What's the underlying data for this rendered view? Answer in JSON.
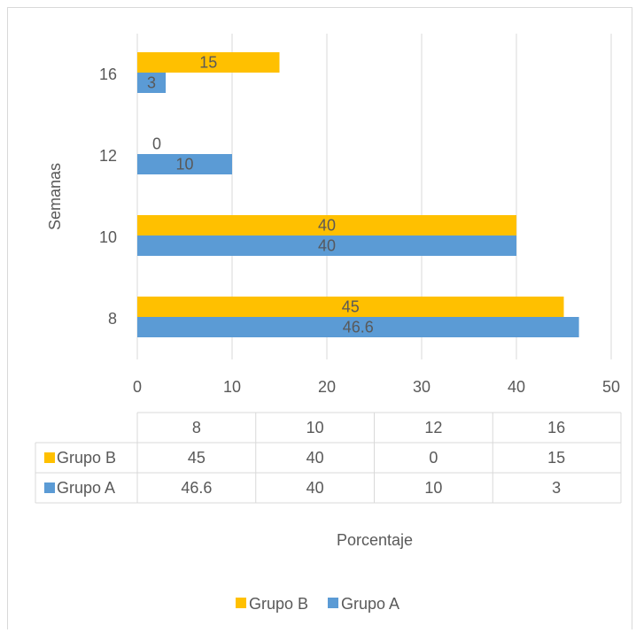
{
  "chart_data": {
    "type": "bar",
    "orientation": "horizontal",
    "categories": [
      "8",
      "10",
      "12",
      "16"
    ],
    "series": [
      {
        "name": "Grupo A",
        "values": [
          46.6,
          40,
          10,
          3
        ],
        "color": "#5b9bd5"
      },
      {
        "name": "Grupo B",
        "values": [
          45,
          40,
          0,
          15
        ],
        "color": "#ffc000"
      }
    ],
    "xlabel": "Porcentaje",
    "ylabel": "Semanas",
    "xlim": [
      0,
      50
    ],
    "x_ticks": [
      "0",
      "10",
      "20",
      "30",
      "40",
      "50"
    ],
    "grid": "vertical",
    "legend_position": "bottom",
    "data_table": true,
    "gridline_color": "#d9d9d9",
    "text_color": "#595959"
  }
}
